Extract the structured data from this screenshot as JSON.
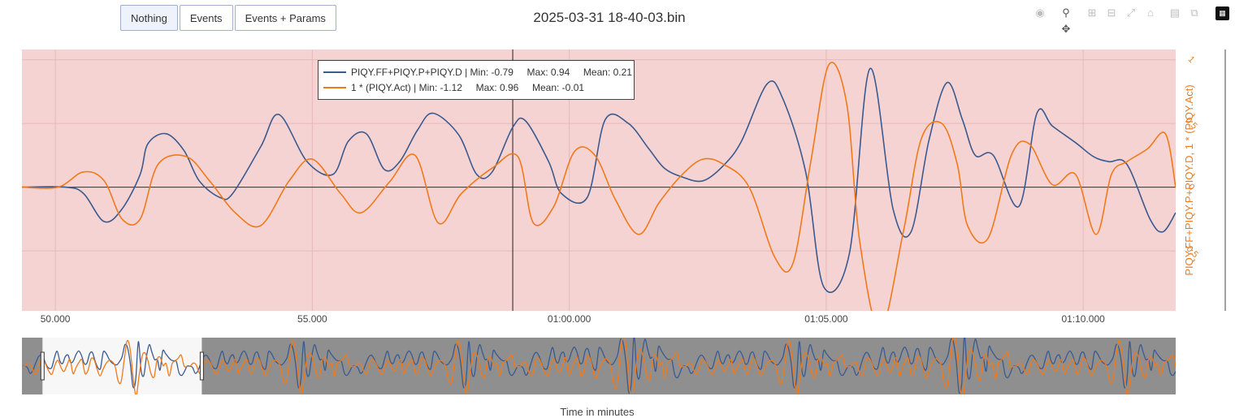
{
  "toolbar": {
    "buttons": [
      {
        "label": "Nothing",
        "active": true
      },
      {
        "label": "Events",
        "active": false
      },
      {
        "label": "Events + Params",
        "active": false
      }
    ],
    "icons": [
      "camera-icon",
      "zoom-icon",
      "pan-icon",
      "zoom-in-icon",
      "zoom-out-icon",
      "autoscale-icon",
      "reset-axes-icon",
      "save-icon",
      "copy-icon",
      "plotly-logo-icon"
    ]
  },
  "title": "2025-03-31 18-40-03.bin",
  "colors": {
    "series1": "#3b5a8f",
    "series2": "#f07a1a",
    "plot_bg": "#f5d3d3",
    "range_bg": "#8f8f8f",
    "range_window": "#f7f7f7"
  },
  "chart_data": {
    "type": "line",
    "xlabel": "Time in minutes",
    "ylabel_right": "PIQY.FF+PIQY.P+PIQY.D, 1 * (PIQY.Act)",
    "x_tick_labels": [
      "50.000",
      "55.000",
      "01:00.000",
      "01:05.000",
      "01:10.000"
    ],
    "x_ticks_seconds": [
      50,
      55,
      60,
      65,
      70
    ],
    "y_tick_labels": [
      "1",
      "0.5",
      "0",
      "-0.5"
    ],
    "y_ticks": [
      1,
      0.5,
      0,
      -0.5
    ],
    "xlim": [
      49.35,
      71.8
    ],
    "ylim": [
      -0.97,
      1.08
    ],
    "vertical_marker_x": 58.9,
    "grid": true,
    "legend_position": "top-left",
    "series": [
      {
        "name": "PIQY.FF+PIQY.P+PIQY.D",
        "stats": "Min: -0.79     Max: 0.94     Mean: 0.21",
        "x": [
          49.35,
          50.2,
          50.55,
          50.95,
          51.3,
          51.65,
          51.8,
          52.15,
          52.5,
          52.8,
          53.2,
          53.45,
          54.0,
          54.35,
          54.9,
          55.4,
          55.7,
          56.05,
          56.4,
          56.7,
          57.05,
          57.35,
          57.85,
          58.2,
          58.5,
          58.9,
          59.15,
          59.6,
          59.85,
          60.35,
          60.7,
          61.15,
          61.55,
          61.85,
          62.2,
          62.6,
          63.0,
          63.35,
          63.85,
          64.15,
          64.6,
          64.95,
          65.45,
          65.85,
          66.3,
          66.65,
          67.0,
          67.35,
          67.65,
          67.9,
          68.25,
          68.75,
          69.1,
          69.4,
          69.85,
          70.2,
          70.5,
          70.85,
          71.3,
          71.55,
          71.8
        ],
        "y": [
          0,
          0,
          -0.05,
          -0.27,
          -0.17,
          0.1,
          0.34,
          0.42,
          0.29,
          0.05,
          -0.08,
          -0.05,
          0.32,
          0.57,
          0.2,
          0.1,
          0.36,
          0.42,
          0.14,
          0.2,
          0.45,
          0.58,
          0.41,
          0.1,
          0.12,
          0.47,
          0.52,
          0.2,
          -0.05,
          -0.08,
          0.53,
          0.5,
          0.3,
          0.15,
          0.08,
          0.05,
          0.17,
          0.36,
          0.81,
          0.7,
          0.12,
          -0.78,
          -0.52,
          0.93,
          -0.17,
          -0.35,
          0.37,
          0.82,
          0.53,
          0.25,
          0.25,
          -0.15,
          0.58,
          0.48,
          0.35,
          0.24,
          0.2,
          0.18,
          -0.25,
          -0.35,
          -0.2
        ]
      },
      {
        "name": "1 * (PIQY.Act)",
        "stats": "Min: -1.12     Max: 0.96     Mean: -0.01",
        "x": [
          49.35,
          50.05,
          50.55,
          50.95,
          51.3,
          51.65,
          52.0,
          52.55,
          53.0,
          53.5,
          54.0,
          54.55,
          55.0,
          55.55,
          55.95,
          56.5,
          57.0,
          57.45,
          57.9,
          58.5,
          59.0,
          59.3,
          59.7,
          60.1,
          60.5,
          60.9,
          61.35,
          61.75,
          62.2,
          62.6,
          63.0,
          63.5,
          64.0,
          64.35,
          64.7,
          65.05,
          65.4,
          65.65,
          66.05,
          66.5,
          66.85,
          67.25,
          67.55,
          67.75,
          68.15,
          68.6,
          68.95,
          69.4,
          69.85,
          70.25,
          70.55,
          70.85,
          71.25,
          71.6,
          71.8
        ],
        "y": [
          0,
          0,
          0.12,
          0.05,
          -0.25,
          -0.25,
          0.18,
          0.24,
          0.05,
          -0.2,
          -0.3,
          0.05,
          0.22,
          -0.05,
          -0.2,
          0.04,
          0.25,
          -0.28,
          -0.05,
          0.15,
          0.24,
          -0.28,
          -0.15,
          0.28,
          0.25,
          -0.1,
          -0.37,
          -0.12,
          0.1,
          0.22,
          0.18,
          0.0,
          -0.55,
          -0.6,
          0.2,
          0.96,
          0.65,
          -0.42,
          -1.12,
          -0.35,
          0.38,
          0.5,
          0.18,
          -0.3,
          -0.4,
          0.25,
          0.34,
          0.02,
          0.1,
          -0.37,
          0.1,
          0.2,
          0.3,
          0.42,
          0.0
        ]
      }
    ]
  },
  "range_slider": {
    "window_start_x": 49.75,
    "window_end_x": 52.85
  }
}
